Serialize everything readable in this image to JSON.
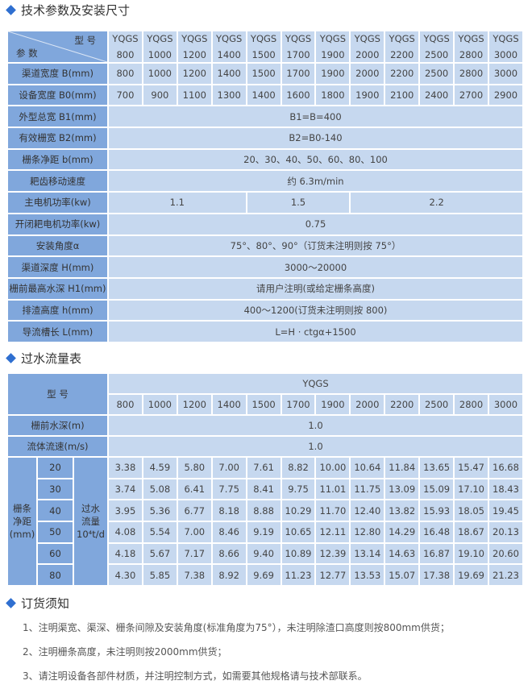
{
  "section1": {
    "title": "技术参数及安装尺寸",
    "header_model": "型 号",
    "header_param": "参 数",
    "models": [
      [
        "YQGS",
        "800"
      ],
      [
        "YQGS",
        "1000"
      ],
      [
        "YQGS",
        "1200"
      ],
      [
        "YQGS",
        "1400"
      ],
      [
        "YQGS",
        "1500"
      ],
      [
        "YQGS",
        "1700"
      ],
      [
        "YQGS",
        "1900"
      ],
      [
        "YQGS",
        "2000"
      ],
      [
        "YQGS",
        "2200"
      ],
      [
        "YQGS",
        "2500"
      ],
      [
        "YQGS",
        "2800"
      ],
      [
        "YQGS",
        "3000"
      ]
    ],
    "rows": [
      {
        "label": "渠道宽度 B(mm)",
        "cells": [
          [
            "800",
            1
          ],
          [
            "1000",
            1
          ],
          [
            "1200",
            1
          ],
          [
            "1400",
            1
          ],
          [
            "1500",
            1
          ],
          [
            "1700",
            1
          ],
          [
            "1900",
            1
          ],
          [
            "2000",
            1
          ],
          [
            "2200",
            1
          ],
          [
            "2500",
            1
          ],
          [
            "2800",
            1
          ],
          [
            "3000",
            1
          ]
        ]
      },
      {
        "label": "设备宽度 B0(mm)",
        "cells": [
          [
            "700",
            1
          ],
          [
            "900",
            1
          ],
          [
            "1100",
            1
          ],
          [
            "1300",
            1
          ],
          [
            "1400",
            1
          ],
          [
            "1600",
            1
          ],
          [
            "1800",
            1
          ],
          [
            "1900",
            1
          ],
          [
            "2100",
            1
          ],
          [
            "2400",
            1
          ],
          [
            "2700",
            1
          ],
          [
            "2900",
            1
          ]
        ]
      },
      {
        "label": "外型总宽 B1(mm)",
        "cells": [
          [
            "B1=B=400",
            12
          ]
        ]
      },
      {
        "label": "有效栅宽 B2(mm)",
        "cells": [
          [
            "B2=B0-140",
            12
          ]
        ]
      },
      {
        "label": "栅条净距 b(mm)",
        "cells": [
          [
            "20、30、40、50、60、80、100",
            12
          ]
        ]
      },
      {
        "label": "耙齿移动速度",
        "cells": [
          [
            "约 6.3m/min",
            12
          ]
        ]
      },
      {
        "label": "主电机功率(kw)",
        "cells": [
          [
            "1.1",
            4
          ],
          [
            "1.5",
            3
          ],
          [
            "2.2",
            5
          ]
        ]
      },
      {
        "label": "开闭耙电机功率(kw)",
        "cells": [
          [
            "0.75",
            12
          ]
        ]
      },
      {
        "label": "安装角度α",
        "cells": [
          [
            "75°、80°、90°（订货未注明则按 75°）",
            12
          ]
        ]
      },
      {
        "label": "渠道深度 H(mm)",
        "cells": [
          [
            "3000～20000",
            12
          ]
        ]
      },
      {
        "label": "栅前最高水深 H1(mm)",
        "cells": [
          [
            "请用户注明(或给定栅条高度)",
            12
          ]
        ]
      },
      {
        "label": "排渣高度 h(mm)",
        "cells": [
          [
            "400～1200(订货未注明则按 800)",
            12
          ]
        ]
      },
      {
        "label": "导流槽长 L(mm)",
        "cells": [
          [
            "L=H · ctgα+1500",
            12
          ]
        ]
      }
    ]
  },
  "section2": {
    "title": "过水流量表",
    "header_model": "型 号",
    "series": "YQGS",
    "sizes": [
      "800",
      "1000",
      "1200",
      "1400",
      "1500",
      "1700",
      "1900",
      "2000",
      "2200",
      "2500",
      "2800",
      "3000"
    ],
    "depth_label": "栅前水深(m)",
    "depth_value": "1.0",
    "speed_label": "流体流速(m/s)",
    "speed_value": "1.0",
    "gap_label": [
      "栅条",
      "净距",
      "(mm)"
    ],
    "flow_label": [
      "过水",
      "流量",
      "10⁴t/d"
    ],
    "rows": [
      {
        "gap": "20",
        "values": [
          "3.38",
          "4.59",
          "5.80",
          "7.00",
          "7.61",
          "8.82",
          "10.00",
          "10.64",
          "11.84",
          "13.65",
          "15.47",
          "16.68"
        ]
      },
      {
        "gap": "30",
        "values": [
          "3.74",
          "5.08",
          "6.41",
          "7.75",
          "8.41",
          "9.75",
          "11.01",
          "11.75",
          "13.09",
          "15.09",
          "17.10",
          "18.43"
        ]
      },
      {
        "gap": "40",
        "values": [
          "3.95",
          "5.36",
          "6.77",
          "8.18",
          "8.88",
          "10.29",
          "11.70",
          "12.40",
          "13.82",
          "15.93",
          "18.05",
          "19.45"
        ]
      },
      {
        "gap": "50",
        "values": [
          "4.08",
          "5.54",
          "7.00",
          "8.46",
          "9.19",
          "10.65",
          "12.11",
          "12.80",
          "14.29",
          "16.48",
          "18.67",
          "20.13"
        ]
      },
      {
        "gap": "60",
        "values": [
          "4.18",
          "5.67",
          "7.17",
          "8.66",
          "9.40",
          "10.89",
          "12.39",
          "13.14",
          "14.63",
          "16.87",
          "19.10",
          "20.60"
        ]
      },
      {
        "gap": "80",
        "values": [
          "4.30",
          "5.85",
          "7.38",
          "8.92",
          "9.69",
          "11.23",
          "12.77",
          "13.53",
          "15.07",
          "17.38",
          "19.69",
          "21.23"
        ]
      }
    ]
  },
  "section3": {
    "title": "订货须知",
    "notes": [
      "1、注明渠宽、渠深、栅条间隙及安装角度(标准角度为75°），未注明除渣口高度则按800mm供货；",
      "2、注明栅条高度，未注明则按2000mm供货；",
      "3、请注明设备各部件材质，并注明控制方式，如需要其他规格请与技术部联系。"
    ]
  },
  "colors": {
    "label_cell": "#80a7dc",
    "data_cell": "#c6d8ef",
    "accent": "#2f6fd0"
  }
}
